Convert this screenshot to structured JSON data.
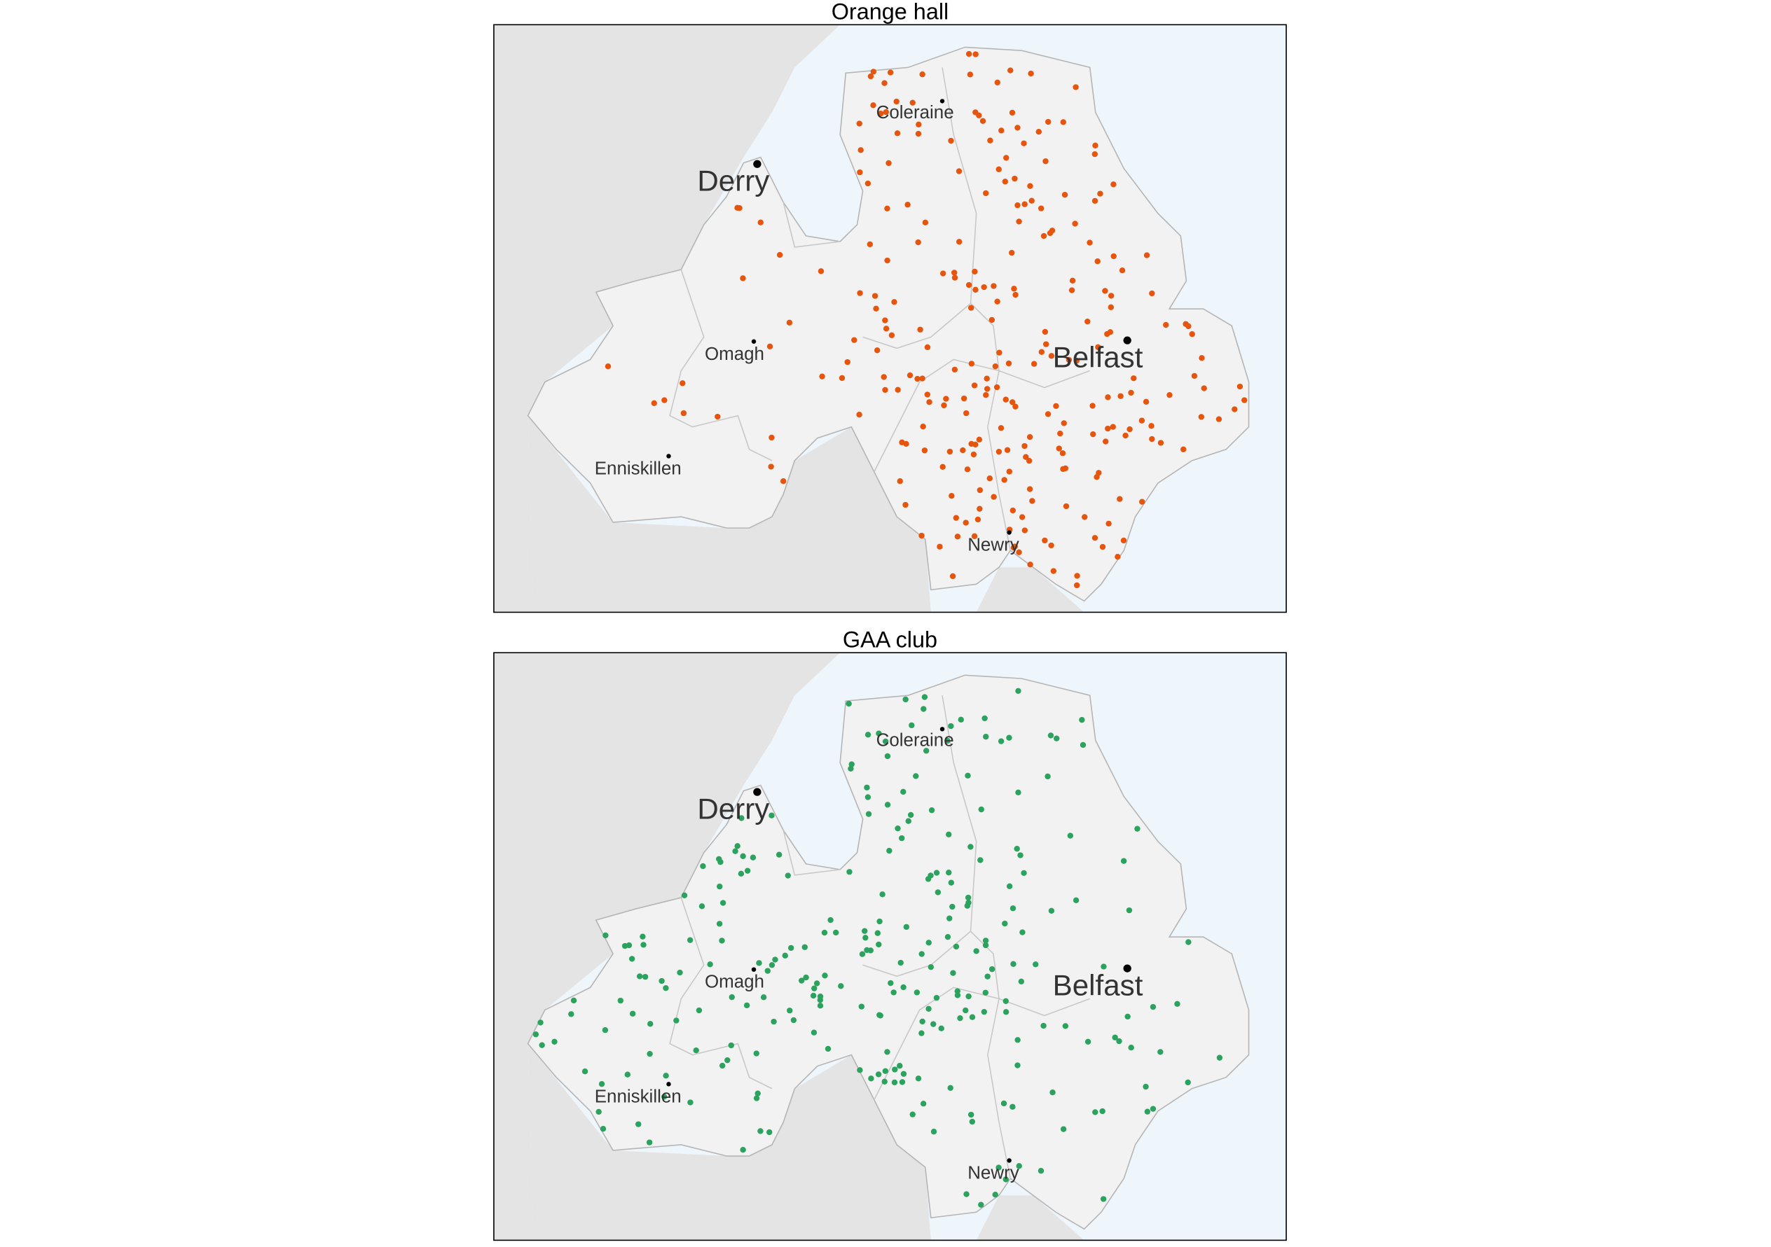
{
  "panels": [
    {
      "title": "Orange hall"
    },
    {
      "title": "GAA club"
    }
  ],
  "cities": [
    {
      "label": "Derry"
    },
    {
      "label": "Coleraine"
    },
    {
      "label": "Omagh"
    },
    {
      "label": "Belfast"
    },
    {
      "label": "Enniskillen"
    },
    {
      "label": "Newry"
    }
  ]
}
